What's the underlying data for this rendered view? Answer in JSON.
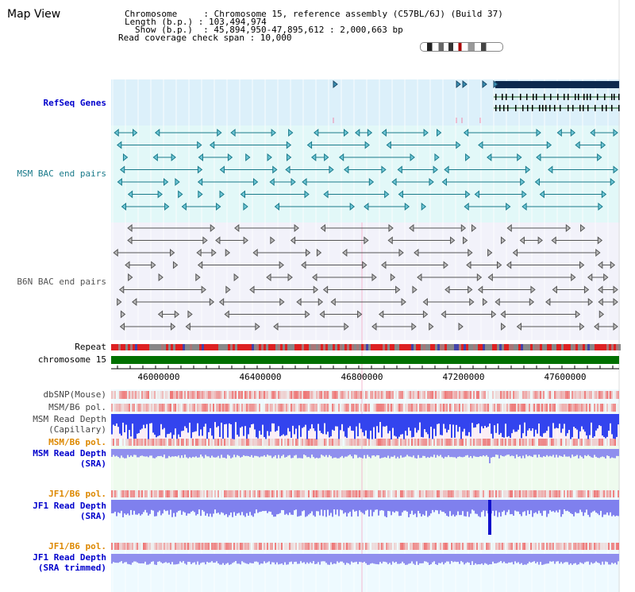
{
  "page_title": "Map View",
  "header": {
    "line1": "Chromosome     : Chromosome 15, reference assembly (C57BL/6J) (Build 37)",
    "line2": "Length (b.p.) : 103,494,974",
    "line3": "Show (b.p.)  : 45,894,950-47,895,612 : 2,000,663 bp",
    "line4": "Read coverage check span : 10,000"
  },
  "tracks": {
    "refseq": "RefSeq Genes",
    "msm_bac": "MSM BAC end pairs",
    "b6n_bac": "B6N BAC end pairs",
    "repeat": "Repeat",
    "chromosome": "chromosome 15",
    "dbsnp": "dbSNP(Mouse)",
    "msm_b6_pol": "MSM/B6 pol.",
    "msm_read_depth_cap_1": "MSM Read Depth",
    "msm_read_depth_cap_2": "(Capillary)",
    "msm_b6_pol_2": "MSM/B6 pol.",
    "msm_read_depth_sra_1": "MSM Read Depth",
    "msm_read_depth_sra_2": "(SRA)",
    "jf1_b6_pol": "JF1/B6 pol.",
    "jf1_read_depth_1": "JF1 Read Depth",
    "jf1_read_depth_2": "(SRA)",
    "jf1_b6_pol_2": "JF1/B6 pol.",
    "jf1_read_depth_trim_1": "JF1 Read Depth",
    "jf1_read_depth_trim_2": "(SRA trimmed)"
  },
  "axis_ticks": [
    "46000000",
    "46400000",
    "46800000",
    "47200000",
    "47600000"
  ],
  "colors": {
    "refseq_band": "#dff0fa",
    "msm_band": "#e4fafa",
    "b6n_band": "#f3f3fb",
    "chromosome_bar": "#007000",
    "gene_dark": "#0d2a4e",
    "depth_blue": "#3333ee",
    "depth_light": "#8888ee",
    "pol_red": "#ee3333"
  }
}
